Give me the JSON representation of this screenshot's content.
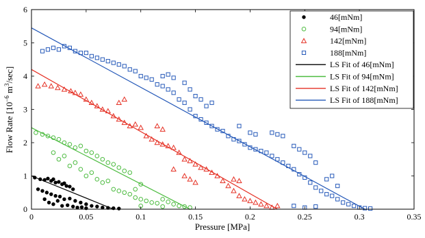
{
  "chart_data": {
    "type": "scatter",
    "title": "",
    "xlabel": "Pressure [MPa]",
    "ylabel_main": "Flow Rate [10",
    "ylabel_exp": "−6",
    "ylabel_unit": " m",
    "ylabel_exp2": "3",
    "ylabel_tail": "/sec]",
    "xlim": [
      0,
      0.35
    ],
    "ylim": [
      0,
      6
    ],
    "xticks": [
      0,
      0.05,
      0.1,
      0.15,
      0.2,
      0.25,
      0.3,
      0.35
    ],
    "xtick_labels": [
      "0",
      "0.05",
      "0.1",
      "0.15",
      "0.2",
      "0.25",
      "0.3",
      "0.35"
    ],
    "yticks": [
      0,
      1,
      2,
      3,
      4,
      5,
      6
    ],
    "ytick_labels": [
      "0",
      "1",
      "2",
      "3",
      "4",
      "5",
      "6"
    ],
    "grid": false,
    "legend_position": "top-right",
    "series": [
      {
        "name": "46[mNm]",
        "marker": "dot",
        "color": "#000000",
        "points": [
          [
            0.003,
            0.95
          ],
          [
            0.008,
            0.9
          ],
          [
            0.012,
            0.88
          ],
          [
            0.015,
            0.92
          ],
          [
            0.018,
            0.85
          ],
          [
            0.02,
            0.9
          ],
          [
            0.022,
            0.8
          ],
          [
            0.025,
            0.82
          ],
          [
            0.028,
            0.75
          ],
          [
            0.03,
            0.78
          ],
          [
            0.032,
            0.7
          ],
          [
            0.035,
            0.68
          ],
          [
            0.038,
            0.6
          ],
          [
            0.006,
            0.6
          ],
          [
            0.01,
            0.55
          ],
          [
            0.014,
            0.5
          ],
          [
            0.018,
            0.45
          ],
          [
            0.022,
            0.4
          ],
          [
            0.026,
            0.38
          ],
          [
            0.03,
            0.3
          ],
          [
            0.035,
            0.32
          ],
          [
            0.04,
            0.25
          ],
          [
            0.045,
            0.2
          ],
          [
            0.05,
            0.15
          ],
          [
            0.055,
            0.1
          ],
          [
            0.06,
            0.08
          ],
          [
            0.065,
            0.05
          ],
          [
            0.07,
            0.04
          ],
          [
            0.075,
            0.03
          ],
          [
            0.08,
            0.02
          ],
          [
            0.012,
            0.3
          ],
          [
            0.016,
            0.2
          ],
          [
            0.02,
            0.15
          ],
          [
            0.024,
            0.25
          ],
          [
            0.028,
            0.1
          ],
          [
            0.033,
            0.12
          ],
          [
            0.038,
            0.08
          ],
          [
            0.042,
            0.05
          ],
          [
            0.046,
            0.06
          ],
          [
            0.05,
            0.03
          ]
        ]
      },
      {
        "name": "94[mNm]",
        "marker": "circle",
        "color": "#4cbb3f",
        "points": [
          [
            0.004,
            2.3
          ],
          [
            0.01,
            2.25
          ],
          [
            0.015,
            2.2
          ],
          [
            0.02,
            2.15
          ],
          [
            0.025,
            2.1
          ],
          [
            0.03,
            2.0
          ],
          [
            0.035,
            1.95
          ],
          [
            0.04,
            1.85
          ],
          [
            0.045,
            1.9
          ],
          [
            0.05,
            1.75
          ],
          [
            0.055,
            1.7
          ],
          [
            0.06,
            1.6
          ],
          [
            0.065,
            1.5
          ],
          [
            0.07,
            1.4
          ],
          [
            0.075,
            1.35
          ],
          [
            0.08,
            1.25
          ],
          [
            0.085,
            1.15
          ],
          [
            0.09,
            1.1
          ],
          [
            0.02,
            1.7
          ],
          [
            0.025,
            1.5
          ],
          [
            0.03,
            1.6
          ],
          [
            0.035,
            1.3
          ],
          [
            0.04,
            1.4
          ],
          [
            0.045,
            1.2
          ],
          [
            0.05,
            1.0
          ],
          [
            0.055,
            1.1
          ],
          [
            0.06,
            0.9
          ],
          [
            0.065,
            0.8
          ],
          [
            0.07,
            0.85
          ],
          [
            0.075,
            0.6
          ],
          [
            0.08,
            0.55
          ],
          [
            0.085,
            0.5
          ],
          [
            0.09,
            0.45
          ],
          [
            0.095,
            0.35
          ],
          [
            0.1,
            0.3
          ],
          [
            0.105,
            0.25
          ],
          [
            0.11,
            0.2
          ],
          [
            0.115,
            0.18
          ],
          [
            0.12,
            0.3
          ],
          [
            0.125,
            0.22
          ],
          [
            0.13,
            0.15
          ],
          [
            0.135,
            0.1
          ],
          [
            0.14,
            0.08
          ],
          [
            0.145,
            0.05
          ],
          [
            0.12,
            0.08
          ],
          [
            0.1,
            0.1
          ],
          [
            0.095,
            0.6
          ],
          [
            0.1,
            0.75
          ]
        ]
      },
      {
        "name": "142[mNm]",
        "marker": "triangle",
        "color": "#e53024",
        "points": [
          [
            0.006,
            3.7
          ],
          [
            0.012,
            3.75
          ],
          [
            0.018,
            3.7
          ],
          [
            0.024,
            3.65
          ],
          [
            0.03,
            3.6
          ],
          [
            0.036,
            3.55
          ],
          [
            0.04,
            3.5
          ],
          [
            0.045,
            3.45
          ],
          [
            0.05,
            3.3
          ],
          [
            0.055,
            3.2
          ],
          [
            0.06,
            3.1
          ],
          [
            0.065,
            3.0
          ],
          [
            0.07,
            2.95
          ],
          [
            0.075,
            2.8
          ],
          [
            0.08,
            2.7
          ],
          [
            0.085,
            2.6
          ],
          [
            0.09,
            2.5
          ],
          [
            0.095,
            2.55
          ],
          [
            0.1,
            2.45
          ],
          [
            0.105,
            2.2
          ],
          [
            0.11,
            2.1
          ],
          [
            0.115,
            2.0
          ],
          [
            0.12,
            1.95
          ],
          [
            0.125,
            1.9
          ],
          [
            0.13,
            1.85
          ],
          [
            0.135,
            1.7
          ],
          [
            0.14,
            1.5
          ],
          [
            0.145,
            1.45
          ],
          [
            0.15,
            1.35
          ],
          [
            0.155,
            1.25
          ],
          [
            0.16,
            1.2
          ],
          [
            0.165,
            1.1
          ],
          [
            0.17,
            1.0
          ],
          [
            0.175,
            0.85
          ],
          [
            0.18,
            0.7
          ],
          [
            0.185,
            0.55
          ],
          [
            0.19,
            0.4
          ],
          [
            0.195,
            0.3
          ],
          [
            0.2,
            0.25
          ],
          [
            0.205,
            0.2
          ],
          [
            0.21,
            0.15
          ],
          [
            0.215,
            0.1
          ],
          [
            0.22,
            0.05
          ],
          [
            0.225,
            0.1
          ],
          [
            0.14,
            1.0
          ],
          [
            0.145,
            0.9
          ],
          [
            0.15,
            0.8
          ],
          [
            0.13,
            1.2
          ],
          [
            0.08,
            3.2
          ],
          [
            0.085,
            3.3
          ],
          [
            0.115,
            2.5
          ],
          [
            0.12,
            2.4
          ],
          [
            0.185,
            0.9
          ],
          [
            0.19,
            0.85
          ]
        ]
      },
      {
        "name": "188[mNm]",
        "marker": "square",
        "color": "#2458b8",
        "points": [
          [
            0.01,
            4.75
          ],
          [
            0.015,
            4.8
          ],
          [
            0.02,
            4.85
          ],
          [
            0.025,
            4.8
          ],
          [
            0.03,
            4.9
          ],
          [
            0.035,
            4.85
          ],
          [
            0.04,
            4.75
          ],
          [
            0.045,
            4.7
          ],
          [
            0.05,
            4.7
          ],
          [
            0.055,
            4.6
          ],
          [
            0.06,
            4.55
          ],
          [
            0.065,
            4.5
          ],
          [
            0.07,
            4.45
          ],
          [
            0.075,
            4.4
          ],
          [
            0.08,
            4.35
          ],
          [
            0.085,
            4.3
          ],
          [
            0.09,
            4.2
          ],
          [
            0.095,
            4.15
          ],
          [
            0.1,
            4.0
          ],
          [
            0.105,
            3.95
          ],
          [
            0.11,
            3.9
          ],
          [
            0.115,
            3.75
          ],
          [
            0.12,
            3.7
          ],
          [
            0.125,
            3.6
          ],
          [
            0.13,
            3.5
          ],
          [
            0.135,
            3.3
          ],
          [
            0.14,
            3.2
          ],
          [
            0.145,
            3.0
          ],
          [
            0.15,
            2.8
          ],
          [
            0.155,
            2.7
          ],
          [
            0.16,
            2.6
          ],
          [
            0.165,
            2.5
          ],
          [
            0.17,
            2.4
          ],
          [
            0.175,
            2.35
          ],
          [
            0.18,
            2.2
          ],
          [
            0.185,
            2.1
          ],
          [
            0.19,
            2.05
          ],
          [
            0.195,
            1.95
          ],
          [
            0.2,
            1.85
          ],
          [
            0.205,
            1.8
          ],
          [
            0.21,
            1.75
          ],
          [
            0.215,
            1.7
          ],
          [
            0.22,
            1.6
          ],
          [
            0.225,
            1.5
          ],
          [
            0.23,
            1.4
          ],
          [
            0.235,
            1.3
          ],
          [
            0.24,
            1.2
          ],
          [
            0.245,
            1.05
          ],
          [
            0.25,
            0.95
          ],
          [
            0.255,
            0.8
          ],
          [
            0.26,
            0.65
          ],
          [
            0.265,
            0.55
          ],
          [
            0.27,
            0.45
          ],
          [
            0.275,
            0.4
          ],
          [
            0.28,
            0.3
          ],
          [
            0.285,
            0.2
          ],
          [
            0.29,
            0.15
          ],
          [
            0.295,
            0.1
          ],
          [
            0.3,
            0.05
          ],
          [
            0.305,
            0.03
          ],
          [
            0.31,
            0.02
          ],
          [
            0.24,
            0.1
          ],
          [
            0.25,
            0.05
          ],
          [
            0.26,
            0.08
          ],
          [
            0.12,
            4.0
          ],
          [
            0.125,
            4.05
          ],
          [
            0.13,
            3.95
          ],
          [
            0.14,
            3.8
          ],
          [
            0.145,
            3.6
          ],
          [
            0.15,
            3.4
          ],
          [
            0.155,
            3.3
          ],
          [
            0.16,
            3.1
          ],
          [
            0.165,
            3.2
          ],
          [
            0.19,
            2.5
          ],
          [
            0.2,
            2.3
          ],
          [
            0.205,
            2.25
          ],
          [
            0.22,
            2.3
          ],
          [
            0.225,
            2.25
          ],
          [
            0.23,
            2.2
          ],
          [
            0.24,
            1.9
          ],
          [
            0.245,
            1.8
          ],
          [
            0.25,
            1.7
          ],
          [
            0.255,
            1.6
          ],
          [
            0.26,
            1.4
          ],
          [
            0.27,
            0.9
          ],
          [
            0.275,
            1.0
          ],
          [
            0.28,
            0.7
          ]
        ]
      }
    ],
    "fit_lines": [
      {
        "name": "LS Fit of 46[mNm]",
        "color": "#000000",
        "x0": 0.0,
        "y0": 1.0,
        "x1": 0.075,
        "y1": 0.0
      },
      {
        "name": "LS Fit of 94[mNm]",
        "color": "#4cbb3f",
        "x0": 0.0,
        "y0": 2.45,
        "x1": 0.145,
        "y1": 0.0
      },
      {
        "name": "LS Fit of 142[mNm]",
        "color": "#e53024",
        "x0": 0.0,
        "y0": 4.2,
        "x1": 0.225,
        "y1": 0.0
      },
      {
        "name": "LS Fit of 188[mNm]",
        "color": "#2458b8",
        "x0": 0.0,
        "y0": 5.45,
        "x1": 0.305,
        "y1": 0.0
      }
    ]
  }
}
